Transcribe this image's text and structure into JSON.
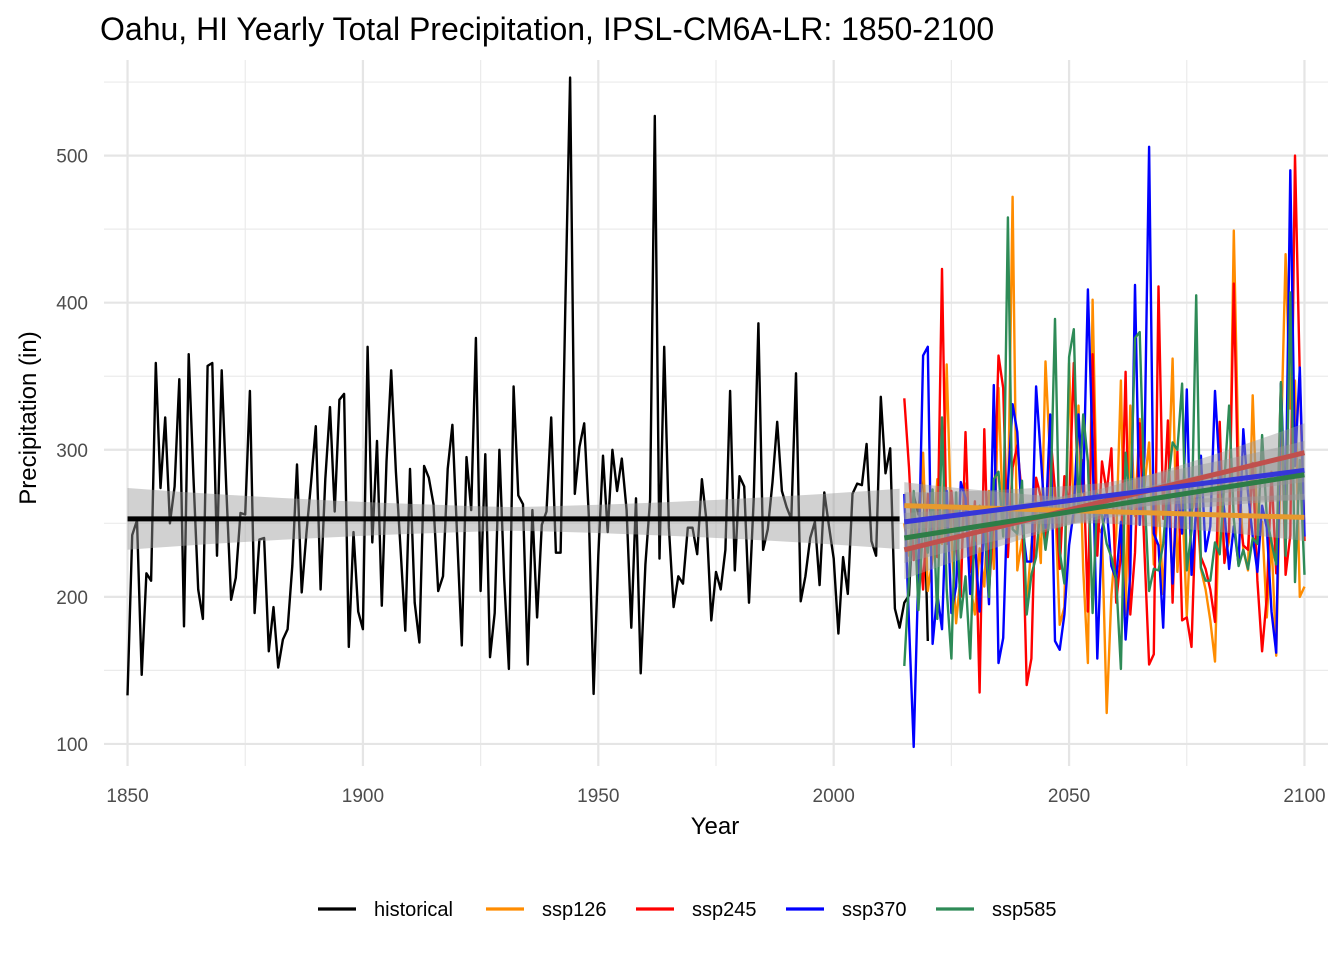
{
  "chart_data": {
    "type": "line",
    "title": "Oahu, HI Yearly Total Precipitation, IPSL-CM6A-LR: 1850-2100",
    "xlabel": "Year",
    "ylabel": "Precipitation (in)",
    "xlim": [
      1845,
      2105
    ],
    "ylim": [
      85,
      565
    ],
    "x_ticks": [
      1850,
      1900,
      1950,
      2000,
      2050,
      2100
    ],
    "y_ticks": [
      100,
      200,
      300,
      400,
      500
    ],
    "grid": true,
    "legend_position": "bottom",
    "series": [
      {
        "name": "historical",
        "color": "#000000",
        "x_start": 1850,
        "values": [
          133,
          242,
          252,
          147,
          216,
          211,
          359,
          274,
          322,
          250,
          275,
          348,
          180,
          365,
          282,
          205,
          185,
          357,
          359,
          228,
          354,
          272,
          198,
          213,
          257,
          256,
          340,
          189,
          239,
          240,
          163,
          193,
          152,
          171,
          178,
          221,
          290,
          203,
          243,
          278,
          316,
          205,
          280,
          329,
          258,
          334,
          338,
          166,
          244,
          190,
          178,
          370,
          237,
          306,
          194,
          292,
          354,
          285,
          232,
          177,
          287,
          196,
          169,
          289,
          281,
          263,
          204,
          214,
          287,
          317,
          242,
          167,
          295,
          259,
          376,
          204,
          297,
          159,
          189,
          300,
          212,
          151,
          343,
          269,
          263,
          154,
          259,
          186,
          249,
          258,
          322,
          230,
          230,
          400,
          553,
          270,
          302,
          318,
          254,
          134,
          228,
          296,
          244,
          300,
          272,
          294,
          259,
          179,
          267,
          148,
          222,
          266,
          527,
          226,
          370,
          247,
          193,
          214,
          209,
          247,
          247,
          229,
          280,
          251,
          184,
          217,
          205,
          232,
          340,
          218,
          282,
          275,
          196,
          266,
          386,
          232,
          246,
          278,
          319,
          272,
          261,
          253,
          352,
          197,
          214,
          240,
          251,
          208,
          271,
          248,
          226,
          175,
          227,
          202,
          270,
          277,
          276,
          304,
          238,
          228,
          336,
          284,
          301,
          192,
          179,
          196,
          201,
          269,
          256,
          294,
          170
        ]
      },
      {
        "name": "ssp126",
        "color": "#FF8C00",
        "x_start": 2015,
        "values": [
          250,
          228,
          262,
          236,
          298,
          204,
          226,
          280,
          236,
          358,
          243,
          182,
          216,
          277,
          208,
          188,
          233,
          207,
          272,
          219,
          342,
          248,
          256,
          472,
          218,
          239,
          195,
          235,
          265,
          223,
          360,
          292,
          266,
          181,
          193,
          359,
          251,
          330,
          219,
          155,
          402,
          248,
          243,
          121,
          201,
          242,
          347,
          188,
          330,
          255,
          321,
          275,
          305,
          222,
          265,
          202,
          268,
          362,
          217,
          269,
          187,
          257,
          271,
          219,
          205,
          184,
          156,
          277,
          225,
          238,
          449,
          289,
          232,
          218,
          337,
          246,
          251,
          186,
          240,
          160,
          302,
          433,
          328,
          347,
          200,
          207
        ]
      },
      {
        "name": "ssp245",
        "color": "#FF0000",
        "x_start": 2015,
        "values": [
          335,
          288,
          225,
          244,
          205,
          270,
          247,
          227,
          423,
          236,
          272,
          236,
          200,
          312,
          217,
          265,
          135,
          314,
          204,
          255,
          364,
          342,
          227,
          288,
          303,
          268,
          140,
          158,
          281,
          268,
          233,
          312,
          272,
          219,
          282,
          261,
          359,
          262,
          293,
          190,
          365,
          228,
          292,
          271,
          301,
          196,
          229,
          353,
          188,
          230,
          318,
          232,
          154,
          161,
          411,
          253,
          320,
          196,
          299,
          184,
          186,
          166,
          267,
          227,
          219,
          205,
          183,
          319,
          223,
          245,
          413,
          259,
          235,
          232,
          291,
          211,
          163,
          200,
          285,
          216,
          345,
          215,
          242,
          500,
          350,
          238
        ]
      },
      {
        "name": "ssp370",
        "color": "#0000FF",
        "x_start": 2015,
        "values": [
          270,
          182,
          98,
          218,
          364,
          370,
          168,
          202,
          178,
          272,
          189,
          207,
          278,
          267,
          202,
          237,
          190,
          253,
          195,
          344,
          155,
          172,
          276,
          331,
          312,
          251,
          224,
          224,
          343,
          296,
          247,
          324,
          170,
          164,
          188,
          235,
          259,
          324,
          271,
          409,
          300,
          158,
          246,
          261,
          221,
          212,
          251,
          171,
          216,
          412,
          249,
          295,
          506,
          243,
          235,
          179,
          277,
          209,
          276,
          243,
          341,
          215,
          260,
          296,
          231,
          248,
          340,
          285,
          258,
          219,
          248,
          222,
          314,
          271,
          241,
          217,
          262,
          247,
          190,
          162,
          345,
          254,
          490,
          289,
          356,
          241
        ]
      },
      {
        "name": "ssp585",
        "color": "#2E8B57",
        "x_start": 2015,
        "values": [
          153,
          212,
          272,
          191,
          251,
          230,
          273,
          185,
          322,
          205,
          158,
          271,
          186,
          214,
          158,
          255,
          262,
          258,
          200,
          280,
          285,
          241,
          458,
          246,
          243,
          279,
          188,
          215,
          227,
          263,
          232,
          257,
          389,
          231,
          209,
          363,
          382,
          258,
          324,
          292,
          189,
          270,
          255,
          236,
          227,
          212,
          151,
          298,
          260,
          376,
          380,
          272,
          204,
          219,
          218,
          236,
          276,
          305,
          300,
          345,
          218,
          245,
          405,
          220,
          211,
          211,
          237,
          229,
          279,
          330,
          253,
          221,
          232,
          219,
          240,
          236,
          310,
          254,
          237,
          222,
          346,
          228,
          407,
          210,
          293,
          215
        ]
      }
    ],
    "trend_lines": [
      {
        "name": "historical",
        "color": "#000000",
        "x": [
          1850,
          2014
        ],
        "y": [
          253,
          253
        ],
        "ci_halfwidth": [
          21,
          8,
          20
        ]
      },
      {
        "name": "ssp126",
        "color": "#E69A2E",
        "x": [
          2015,
          2100
        ],
        "y": [
          262,
          254
        ],
        "ci_halfwidth": [
          16,
          8,
          16
        ]
      },
      {
        "name": "ssp245",
        "color": "#C0504D",
        "x": [
          2015,
          2100
        ],
        "y": [
          232,
          298
        ],
        "ci_halfwidth": [
          20,
          9,
          20
        ]
      },
      {
        "name": "ssp370",
        "color": "#3636D8",
        "x": [
          2015,
          2100
        ],
        "y": [
          251,
          286
        ],
        "ci_halfwidth": [
          20,
          9,
          20
        ]
      },
      {
        "name": "ssp585",
        "color": "#2E7D47",
        "x": [
          2015,
          2100
        ],
        "y": [
          240,
          283
        ],
        "ci_halfwidth": [
          17,
          8,
          17
        ]
      }
    ]
  }
}
